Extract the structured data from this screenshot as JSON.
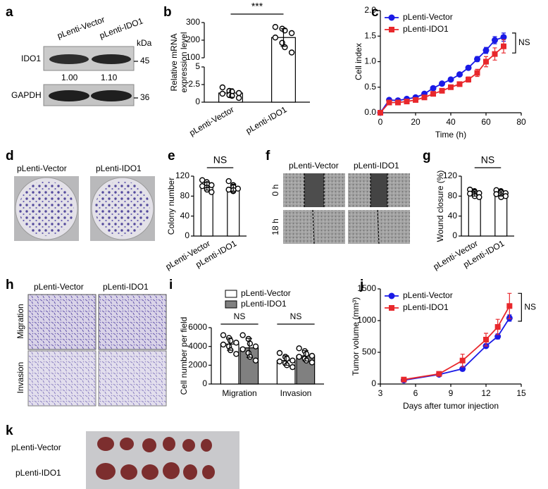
{
  "chart_data": [
    {
      "panel": "b",
      "type": "bar",
      "ylabel": [
        "Relative mRNA",
        "expression level"
      ],
      "categories": [
        "pLenti-Vector",
        "pLenti-IDO1"
      ],
      "values": [
        1.3,
        215
      ],
      "errors": [
        0.6,
        50
      ],
      "points": [
        [
          2.1,
          1.6,
          1.5,
          1.3,
          1.2,
          1.0,
          0.9,
          0.6
        ],
        [
          275,
          265,
          255,
          240,
          215,
          185,
          160,
          130
        ]
      ],
      "color": "#ffffff",
      "ylim": [
        0,
        300
      ],
      "ybreak": [
        5,
        100
      ],
      "yticks": [
        0,
        2.5,
        5,
        100,
        200,
        300
      ],
      "xtick_rotation": 30,
      "annotations": [
        "***"
      ]
    },
    {
      "panel": "c",
      "type": "line",
      "xlabel": "Time (h)",
      "ylabel": "Cell index",
      "x": [
        0,
        5,
        10,
        15,
        20,
        25,
        30,
        35,
        40,
        45,
        50,
        55,
        60,
        65,
        70
      ],
      "series": [
        {
          "name": "pLenti-Vector",
          "color": "#1a1ae6",
          "marker": "circle",
          "values": [
            0,
            0.25,
            0.24,
            0.27,
            0.3,
            0.37,
            0.48,
            0.57,
            0.65,
            0.75,
            0.88,
            1.05,
            1.22,
            1.42,
            1.48
          ],
          "errors": [
            0,
            0.02,
            0.02,
            0.02,
            0.02,
            0.02,
            0.02,
            0.02,
            0.03,
            0.03,
            0.04,
            0.05,
            0.06,
            0.07,
            0.08
          ]
        },
        {
          "name": "pLenti-IDO1",
          "color": "#e8282c",
          "marker": "square",
          "values": [
            0,
            0.2,
            0.2,
            0.22,
            0.25,
            0.3,
            0.37,
            0.43,
            0.5,
            0.56,
            0.65,
            0.78,
            1.0,
            1.15,
            1.3
          ],
          "errors": [
            0,
            0.02,
            0.02,
            0.02,
            0.02,
            0.02,
            0.02,
            0.02,
            0.03,
            0.03,
            0.05,
            0.07,
            0.1,
            0.12,
            0.13
          ]
        }
      ],
      "xlim": [
        0,
        80
      ],
      "xticks": [
        0,
        20,
        40,
        60,
        80
      ],
      "ylim": [
        0,
        2
      ],
      "yticks": [
        {
          "value": 0,
          "label": "0.0"
        },
        {
          "value": 0.5,
          "label": "0.5"
        },
        {
          "value": 1,
          "label": "1.0"
        },
        {
          "value": 1.5,
          "label": "1.5"
        },
        {
          "value": 2,
          "label": "2.0"
        }
      ],
      "legend": "upper left",
      "annotations": [
        "NS"
      ]
    },
    {
      "panel": "e",
      "type": "bar",
      "ylabel": "Colony number",
      "categories": [
        "pLenti-Vector",
        "pLenti-IDO1"
      ],
      "values": [
        100,
        97
      ],
      "errors": [
        8,
        7
      ],
      "points": [
        [
          112,
          108,
          104,
          102,
          100,
          97,
          93,
          88
        ],
        [
          110,
          102,
          98,
          95,
          93,
          90,
          92
        ]
      ],
      "color": "#ffffff",
      "ylim": [
        0,
        120
      ],
      "yticks": [
        0,
        40,
        80,
        120
      ],
      "xtick_rotation": 30,
      "annotations": [
        "NS"
      ]
    },
    {
      "panel": "g",
      "type": "bar",
      "ylabel": "Wound closure (%)",
      "categories": [
        "pLenti-Vector",
        "pLenti-IDO1"
      ],
      "values": [
        85,
        85
      ],
      "errors": [
        5,
        5
      ],
      "points": [
        [
          93,
          90,
          88,
          86,
          85,
          83,
          80,
          78
        ],
        [
          92,
          90,
          88,
          86,
          84,
          82,
          78,
          80
        ]
      ],
      "color": "#ffffff",
      "ylim": [
        0,
        120
      ],
      "yticks": [
        0,
        40,
        80,
        120
      ],
      "xtick_rotation": 30,
      "annotations": [
        "NS"
      ]
    },
    {
      "panel": "i",
      "type": "bar",
      "ylabel": "Cell number per field",
      "categories": [
        "Migration",
        "Invasion"
      ],
      "series": [
        {
          "name": "pLenti-Vector",
          "color": "#ffffff",
          "values": [
            4250,
            2500
          ],
          "errors": [
            650,
            500
          ],
          "points": [
            [
              5200,
              4900,
              4600,
              4400,
              4200,
              4000,
              3600,
              3200
            ],
            [
              3300,
              2900,
              2700,
              2500,
              2400,
              2200,
              2000,
              1800
            ]
          ]
        },
        {
          "name": "pLenti-IDO1",
          "color": "#808080",
          "values": [
            3850,
            3000
          ],
          "errors": [
            1000,
            550
          ],
          "points": [
            [
              5200,
              4800,
              4300,
              4000,
              3700,
              3300,
              2900,
              2500
            ],
            [
              3800,
              3500,
              3200,
              3000,
              2900,
              2700,
              2500,
              2300
            ]
          ]
        }
      ],
      "ylim": [
        0,
        6000
      ],
      "yticks": [
        0,
        2000,
        4000,
        6000
      ],
      "legend": "upper left",
      "annotations": [
        "NS",
        "NS"
      ]
    },
    {
      "panel": "j",
      "type": "line",
      "xlabel": "Days after tumor injection",
      "ylabel": "Tumor volume (mm³)",
      "x": [
        5,
        8,
        10,
        12,
        13,
        14
      ],
      "series": [
        {
          "name": "pLenti-Vector",
          "color": "#1a1ae6",
          "marker": "circle",
          "values": [
            60,
            150,
            240,
            600,
            750,
            1040
          ],
          "errors": [
            5,
            10,
            20,
            30,
            40,
            50
          ]
        },
        {
          "name": "pLenti-IDO1",
          "color": "#e8282c",
          "marker": "square",
          "values": [
            70,
            160,
            370,
            700,
            900,
            1230
          ],
          "errors": [
            10,
            20,
            100,
            100,
            120,
            200
          ]
        }
      ],
      "xlim": [
        3,
        15
      ],
      "xticks": [
        3,
        6,
        9,
        12,
        15
      ],
      "ylim": [
        0,
        1500
      ],
      "yticks": [
        0,
        500,
        1000,
        1500
      ],
      "legend": "upper left",
      "annotations": [
        "NS"
      ]
    }
  ],
  "figures": {
    "a": {
      "panel": "a",
      "columns": [
        "pLenti-Vector",
        "pLenti-IDO1"
      ],
      "unit": "kDa",
      "rows": [
        {
          "label": "IDO1",
          "size": "45"
        },
        {
          "label": "GAPDH",
          "size": "36"
        }
      ],
      "ratios": [
        "1.00",
        "1.10"
      ]
    },
    "d": {
      "panel": "d",
      "columns": [
        "pLenti-Vector",
        "pLenti-IDO1"
      ]
    },
    "f": {
      "panel": "f",
      "columns": [
        "pLenti-Vector",
        "pLenti-IDO1"
      ],
      "rows": [
        "0 h",
        "18 h"
      ]
    },
    "h": {
      "panel": "h",
      "columns": [
        "pLenti-Vector",
        "pLenti-IDO1"
      ],
      "rows": [
        "Migration",
        "Invasion"
      ]
    },
    "k": {
      "panel": "k",
      "rows": [
        "pLenti-Vector",
        "pLenti-IDO1"
      ]
    }
  }
}
